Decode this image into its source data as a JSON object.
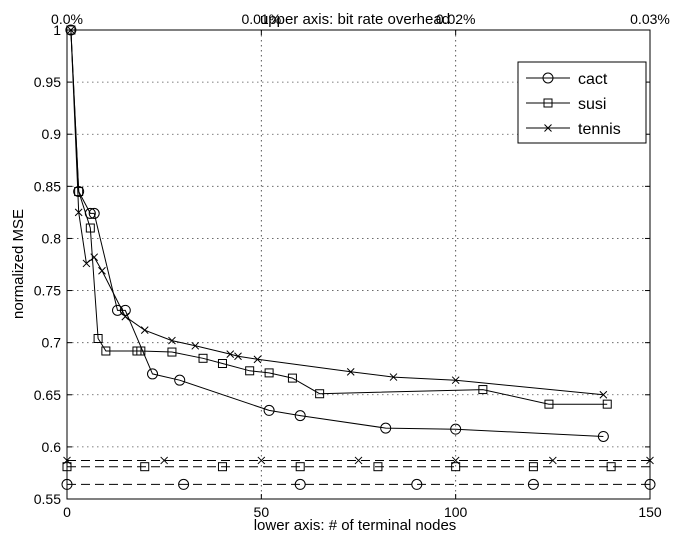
{
  "chart_data": {
    "type": "line",
    "title": "",
    "xlabel": "lower axis: # of terminal nodes",
    "x2label": "upper axis: bit rate overhead",
    "ylabel": "normalized MSE",
    "xlim": [
      0,
      150
    ],
    "ylim": [
      0.55,
      1.0
    ],
    "x_ticks": [
      0,
      50,
      100,
      150
    ],
    "x_tick_labels": [
      "0",
      "50",
      "100",
      "150"
    ],
    "x2_ticks": [
      0,
      0.01,
      0.02,
      0.03
    ],
    "x2_tick_labels": [
      "0.0%",
      "0.01%",
      "0.02%",
      "0.03%"
    ],
    "y_ticks": [
      0.55,
      0.6,
      0.65,
      0.7,
      0.75,
      0.8,
      0.85,
      0.9,
      0.95,
      1.0
    ],
    "y_tick_labels": [
      "0.55",
      "0.6",
      "0.65",
      "0.7",
      "0.75",
      "0.8",
      "0.85",
      "0.9",
      "0.95",
      "1"
    ],
    "grid": true,
    "legend_position": "top-right",
    "series": [
      {
        "name": "cact",
        "marker": "circle",
        "x": [
          1,
          3,
          6,
          7,
          13,
          15,
          22,
          29,
          52,
          60,
          82,
          100,
          138
        ],
        "y": [
          1.0,
          0.845,
          0.824,
          0.824,
          0.731,
          0.731,
          0.67,
          0.664,
          0.635,
          0.63,
          0.618,
          0.617,
          0.61
        ]
      },
      {
        "name": "susi",
        "marker": "square",
        "x": [
          1,
          3,
          6,
          8,
          10,
          18,
          19,
          27,
          35,
          40,
          47,
          52,
          58,
          65,
          107,
          124,
          139
        ],
        "y": [
          1.0,
          0.845,
          0.81,
          0.704,
          0.692,
          0.692,
          0.692,
          0.691,
          0.685,
          0.68,
          0.673,
          0.671,
          0.666,
          0.651,
          0.655,
          0.641,
          0.641
        ]
      },
      {
        "name": "tennis",
        "marker": "x",
        "x": [
          1,
          3,
          5,
          7,
          9,
          15,
          20,
          27,
          33,
          42,
          44,
          49,
          73,
          84,
          100,
          138
        ],
        "y": [
          1.0,
          0.825,
          0.776,
          0.782,
          0.769,
          0.725,
          0.712,
          0.702,
          0.697,
          0.689,
          0.687,
          0.684,
          0.672,
          0.667,
          0.664,
          0.65
        ]
      }
    ],
    "reference_lines": [
      {
        "series": "tennis",
        "marker": "x",
        "y": 0.587,
        "marker_x": [
          0,
          25,
          50,
          75,
          100,
          125,
          150
        ]
      },
      {
        "series": "susi",
        "marker": "square",
        "y": 0.581,
        "marker_x": [
          0,
          20,
          40,
          60,
          80,
          100,
          120,
          140
        ]
      },
      {
        "series": "cact",
        "marker": "circle",
        "y": 0.564,
        "marker_x": [
          0,
          30,
          60,
          90,
          120,
          150
        ]
      }
    ]
  }
}
